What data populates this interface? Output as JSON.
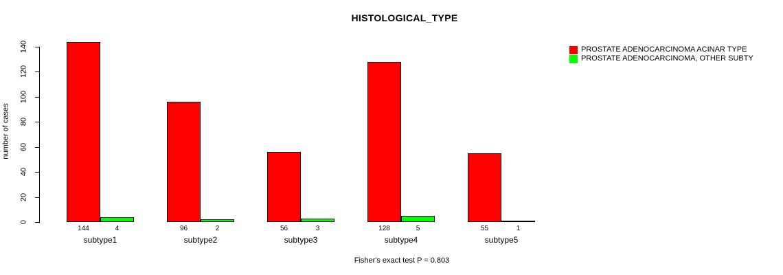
{
  "chart_data": {
    "type": "bar",
    "title": "HISTOLOGICAL_TYPE",
    "ylabel": "number of cases",
    "xlabel": "",
    "ylim": [
      0,
      140
    ],
    "yticks": [
      0,
      20,
      40,
      60,
      80,
      100,
      120,
      140
    ],
    "categories": [
      "subtype1",
      "subtype2",
      "subtype3",
      "subtype4",
      "subtype5"
    ],
    "series": [
      {
        "name": "PROSTATE ADENOCARCINOMA ACINAR TYPE",
        "color": "#ff0000",
        "values": [
          144,
          96,
          56,
          128,
          55
        ]
      },
      {
        "name": "PROSTATE ADENOCARCINOMA, OTHER SUBTY",
        "color": "#00ff00",
        "values": [
          4,
          2,
          3,
          5,
          1
        ]
      }
    ],
    "bar_value_labels": true,
    "legend_position": "right",
    "grid": false,
    "annotation": "Fisher's exact test P = 0.803"
  }
}
